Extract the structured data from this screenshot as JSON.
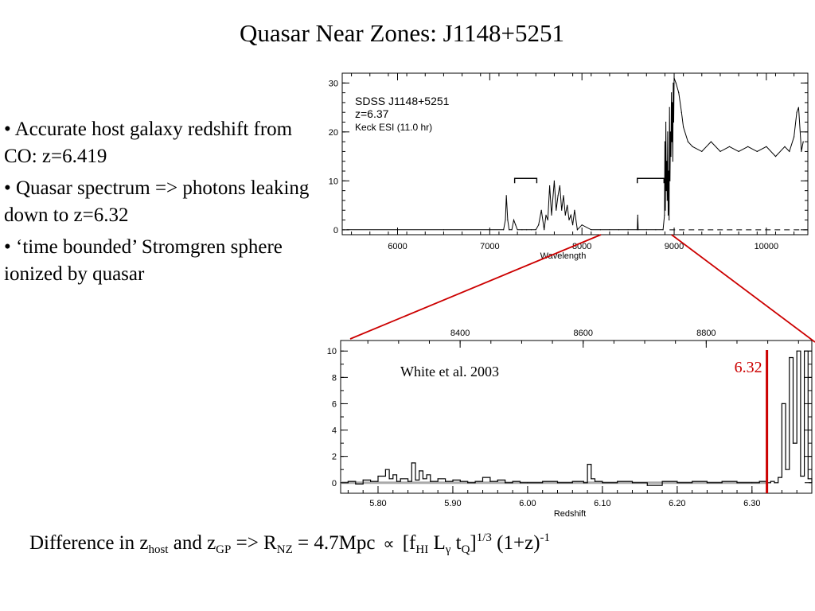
{
  "slide": {
    "title": "Quasar Near Zones: J1148+5251",
    "bullets": [
      "• Accurate host galaxy redshift from CO: z=6.419",
      "• Quasar spectrum => photons leaking down to z=6.32",
      "• ‘time bounded’ Stromgren sphere ionized by quasar"
    ],
    "equation": {
      "t1": "Difference in z",
      "s1": "host",
      "t2": " and z",
      "s2": "GP",
      "t3": " => R",
      "s3": "NZ",
      "t4": " = 4.7Mpc",
      "prop": "∝",
      "t5": "[f",
      "s5": "HI",
      "t6": " L",
      "s6": "γ",
      "t7": " t",
      "s7": "Q",
      "t8": "]",
      "p8": "1/3",
      "t9": " (1+z)",
      "p9": "-1"
    },
    "accent_color": "#cc0000"
  },
  "chart_data": [
    {
      "type": "line",
      "title": "",
      "xlabel": "Wavelength",
      "ylabel": "",
      "xlim": [
        5400,
        10450
      ],
      "ylim": [
        -1,
        32
      ],
      "x_ticks": [
        6000,
        7000,
        8000,
        9000,
        10000
      ],
      "y_ticks": [
        0,
        10,
        20,
        30
      ],
      "grid": false,
      "annotation": [
        "SDSS J1148+5251",
        "z=6.37",
        "Keck ESI (11.0 hr)"
      ],
      "brackets": [
        [
          7270,
          7510
        ],
        [
          8600,
          8890
        ]
      ],
      "zero_dashed_from": 8950,
      "series": [
        {
          "x": [
            5450,
            6000,
            6500,
            7000,
            7150,
            7170,
            7180,
            7195,
            7210,
            7240,
            7260,
            7280,
            7300,
            7350,
            7400,
            7450,
            7500,
            7530,
            7560,
            7590,
            7610,
            7630,
            7650,
            7670,
            7700,
            7720,
            7740,
            7760,
            7780,
            7800,
            7820,
            7840,
            7860,
            7880,
            7900,
            7920,
            7950,
            8000,
            8100,
            8200,
            8300,
            8400,
            8500,
            8600,
            8605,
            8610,
            8700,
            8800,
            8880,
            8895,
            8900,
            8905,
            8910,
            8915,
            8920,
            8925,
            8930,
            8935,
            8940,
            8945,
            8950,
            8955,
            8960,
            8965,
            8970,
            8975,
            8980,
            8985,
            8990,
            8995,
            9000,
            9020,
            9050,
            9080,
            9100,
            9150,
            9200,
            9300,
            9400,
            9500,
            9600,
            9700,
            9800,
            9900,
            10000,
            10100,
            10200,
            10250,
            10300,
            10330,
            10350,
            10380,
            10400
          ],
          "y": [
            0,
            0,
            0,
            0,
            0,
            2,
            7,
            2,
            0,
            0,
            2,
            1,
            0,
            0,
            0,
            0,
            0,
            1,
            4,
            0,
            3,
            2,
            9,
            3,
            10,
            4,
            7,
            9,
            4,
            7,
            3,
            5,
            2,
            3,
            1,
            4,
            0,
            1,
            0,
            0,
            0,
            0,
            0,
            0,
            3,
            0,
            0,
            0,
            0,
            3,
            18,
            4,
            22,
            8,
            14,
            6,
            20,
            3,
            12,
            2,
            25,
            10,
            20,
            15,
            28,
            18,
            26,
            14,
            30,
            22,
            31,
            30,
            28,
            24,
            21,
            18,
            17,
            16,
            18,
            16,
            17,
            16,
            17,
            16,
            17,
            15,
            17,
            16,
            19,
            24,
            25,
            16,
            18
          ]
        }
      ]
    },
    {
      "type": "line",
      "title": "",
      "xlabel": "Redshift",
      "ylabel": "",
      "xlim": [
        5.75,
        6.38
      ],
      "ylim": [
        -0.8,
        10.8
      ],
      "x_ticks": [
        5.8,
        5.9,
        6.0,
        6.1,
        6.2,
        6.3
      ],
      "y_ticks": [
        0,
        2,
        4,
        6,
        8,
        10
      ],
      "top_axis_ticks": [
        8400,
        8600,
        8800
      ],
      "grid": false,
      "annotation": "White et al. 2003",
      "marker_line": {
        "x": 6.32,
        "label": "6.32"
      },
      "series": [
        {
          "x": [
            5.75,
            5.76,
            5.77,
            5.78,
            5.79,
            5.8,
            5.81,
            5.815,
            5.82,
            5.825,
            5.83,
            5.84,
            5.845,
            5.85,
            5.855,
            5.86,
            5.865,
            5.87,
            5.88,
            5.89,
            5.9,
            5.91,
            5.92,
            5.93,
            5.94,
            5.95,
            5.96,
            5.97,
            5.98,
            5.99,
            6.0,
            6.02,
            6.04,
            6.06,
            6.075,
            6.08,
            6.085,
            6.09,
            6.1,
            6.12,
            6.14,
            6.16,
            6.18,
            6.2,
            6.22,
            6.24,
            6.26,
            6.28,
            6.3,
            6.31,
            6.32,
            6.325,
            6.33,
            6.335,
            6.34,
            6.345,
            6.35,
            6.355,
            6.36,
            6.365,
            6.37,
            6.375,
            6.38
          ],
          "y": [
            0,
            0.1,
            -0.1,
            0.2,
            0.1,
            0.5,
            1.0,
            0.3,
            0.6,
            0.1,
            0.3,
            0.1,
            1.5,
            0.2,
            0.9,
            0.3,
            0.6,
            0.1,
            0.3,
            0.1,
            0.2,
            0.1,
            0.0,
            0.1,
            0.4,
            0.1,
            0.2,
            0.0,
            0.1,
            0.0,
            0.0,
            0.1,
            0.0,
            0.1,
            0.0,
            1.4,
            0.3,
            0.1,
            0.0,
            0.1,
            0.0,
            -0.2,
            0.1,
            0.0,
            0.1,
            0.0,
            0.1,
            0.0,
            0.0,
            0.1,
            0.0,
            0.1,
            0.0,
            0.4,
            6.0,
            1.0,
            9.5,
            3.0,
            10.0,
            0.5,
            10.0,
            0.3,
            0.0
          ]
        },
        {
          "name": "",
          "x": [
            5.75,
            5.8,
            5.85,
            5.9,
            5.95,
            6.0,
            6.05,
            6.1,
            6.15,
            6.2,
            6.25,
            6.3,
            6.32
          ],
          "y": [
            0.0,
            0.0,
            0.0,
            0.0,
            0.0,
            0.0,
            0.0,
            0.0,
            0.0,
            0.0,
            0.0,
            0.0,
            0.0
          ]
        }
      ]
    }
  ]
}
